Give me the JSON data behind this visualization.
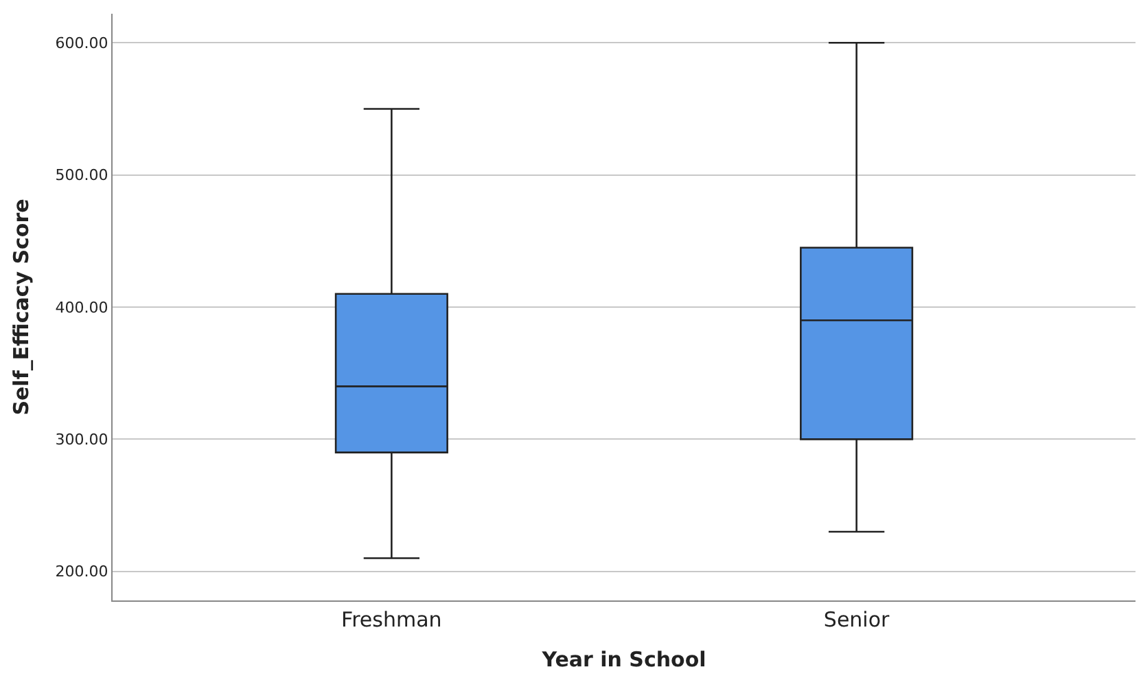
{
  "chart_data": {
    "type": "box",
    "xlabel": "Year in School",
    "ylabel": "Self_Efficacy Score",
    "categories": [
      "Freshman",
      "Senior"
    ],
    "boxes": [
      {
        "low": 210,
        "q1": 290,
        "median": 340,
        "q3": 410,
        "high": 550
      },
      {
        "low": 230,
        "q1": 300,
        "median": 390,
        "q3": 445,
        "high": 600
      }
    ],
    "color": "#5595e5",
    "ylim": [
      178,
      622
    ],
    "yticks": [
      {
        "value": 200,
        "label": "200.00"
      },
      {
        "value": 300,
        "label": "300.00"
      },
      {
        "value": 400,
        "label": "400.00"
      },
      {
        "value": 500,
        "label": "500.00"
      },
      {
        "value": 600,
        "label": "600.00"
      }
    ],
    "grid": "y"
  }
}
